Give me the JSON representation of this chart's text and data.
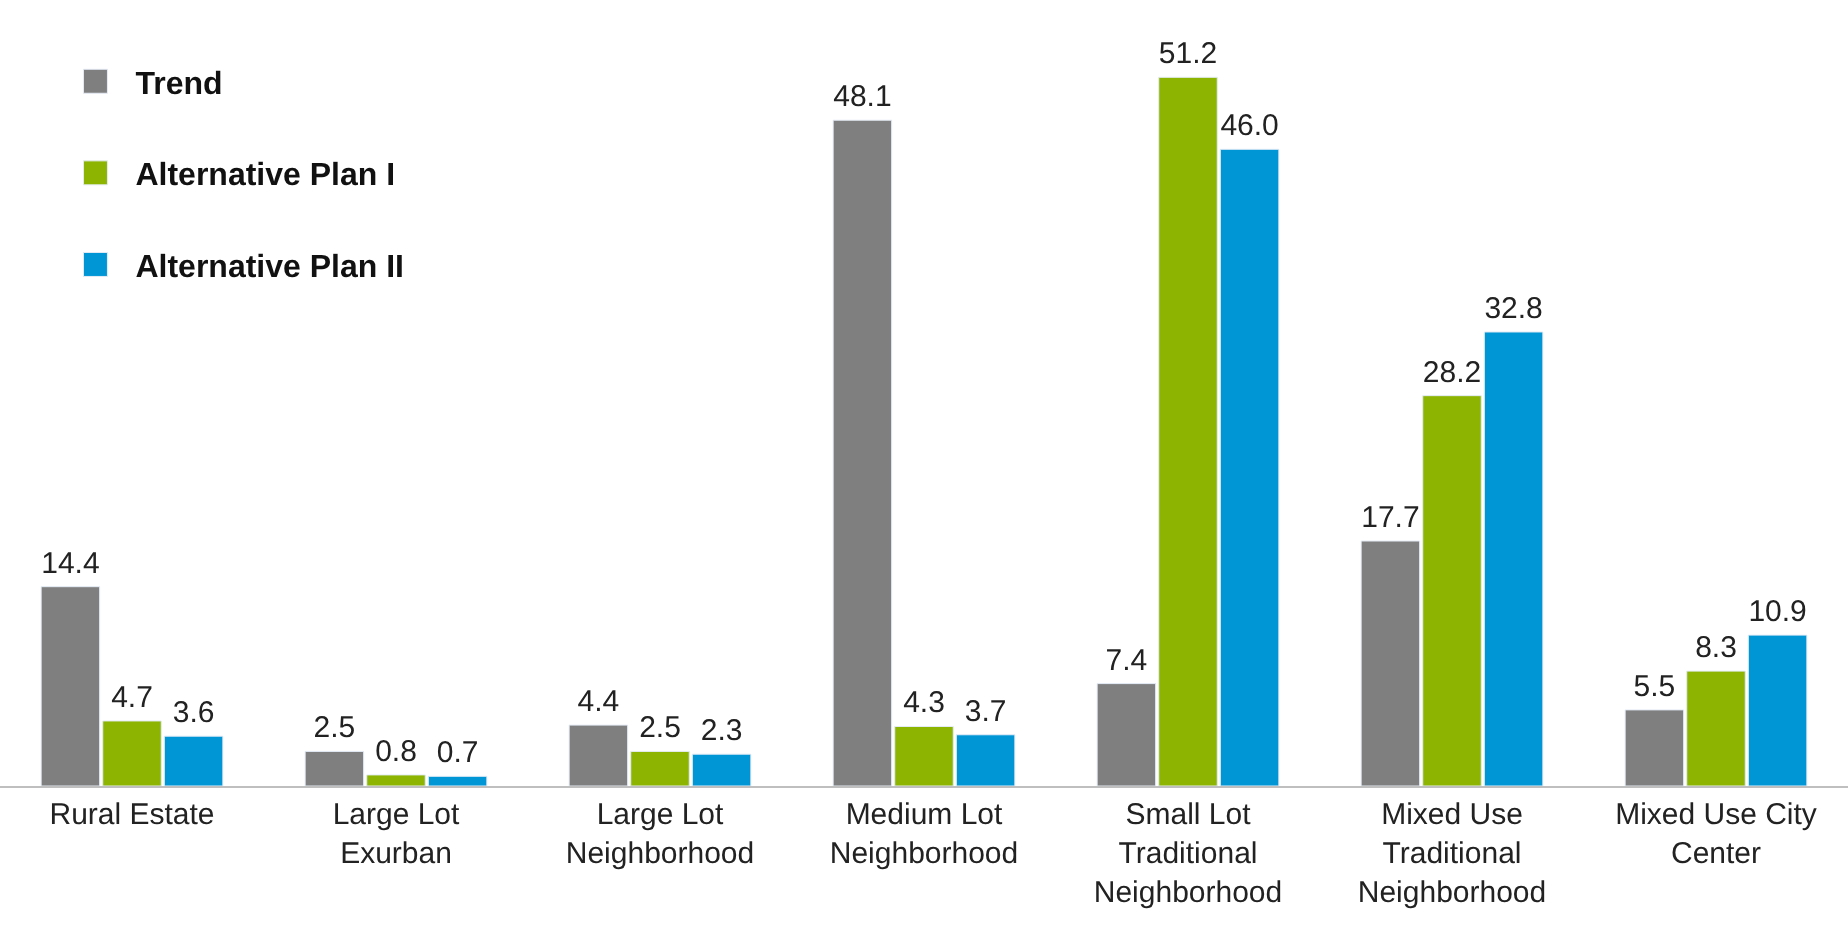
{
  "chart_data": {
    "type": "bar",
    "categories": [
      "Rural Estate",
      "Large Lot\nExurban",
      "Large Lot\nNeighborhood",
      "Medium Lot\nNeighborhood",
      "Small Lot\nTraditional\nNeighborhood",
      "Mixed Use\nTraditional\nNeighborhood",
      "Mixed Use City\nCenter"
    ],
    "series": [
      {
        "name": "Trend",
        "color": "#7f7f7f",
        "values": [
          14.4,
          2.5,
          4.4,
          48.1,
          7.4,
          17.7,
          5.5
        ],
        "value_labels": [
          "14.4",
          "2.5",
          "4.4",
          "48.1",
          "7.4",
          "17.7",
          "5.5"
        ]
      },
      {
        "name": "Alternative Plan I",
        "color": "#8cb400",
        "values": [
          4.7,
          0.8,
          2.5,
          4.3,
          51.2,
          28.2,
          8.3
        ],
        "value_labels": [
          "4.7",
          "0.8",
          "2.5",
          "4.3",
          "51.2",
          "28.2",
          "8.3"
        ]
      },
      {
        "name": "Alternative Plan II",
        "color": "#0096d6",
        "values": [
          3.6,
          0.7,
          2.3,
          3.7,
          46.0,
          32.8,
          10.9
        ],
        "value_labels": [
          "3.6",
          "0.7",
          "2.3",
          "3.7",
          "46.0",
          "32.8",
          "10.9"
        ]
      }
    ],
    "legend": "top left",
    "tick_labels": "x"
  }
}
